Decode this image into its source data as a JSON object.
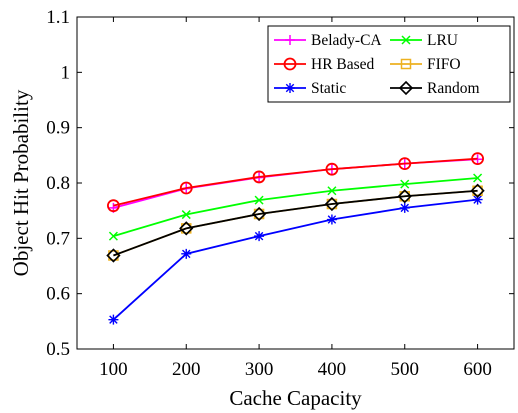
{
  "chart_data": {
    "type": "line",
    "xlabel": "Cache Capacity",
    "ylabel": "Object Hit Probability",
    "x": [
      100,
      200,
      300,
      400,
      500,
      600
    ],
    "xlim": [
      50,
      650
    ],
    "ylim": [
      0.5,
      1.1
    ],
    "xticks": [
      "100",
      "200",
      "300",
      "400",
      "500",
      "600"
    ],
    "yticks": [
      "0.5",
      "0.6",
      "0.7",
      "0.8",
      "0.9",
      "1",
      "1.1"
    ],
    "legend_position": "top-right",
    "grid": false,
    "series": [
      {
        "name": "Belady-CA",
        "color": "#ff00ff",
        "marker": "plus",
        "values": [
          0.755,
          0.79,
          0.81,
          0.825,
          0.835,
          0.843
        ]
      },
      {
        "name": "HR Based",
        "color": "#ff0000",
        "marker": "circle",
        "values": [
          0.759,
          0.791,
          0.811,
          0.825,
          0.835,
          0.844
        ]
      },
      {
        "name": "Static",
        "color": "#0000ff",
        "marker": "asterisk",
        "values": [
          0.553,
          0.672,
          0.704,
          0.734,
          0.755,
          0.77
        ]
      },
      {
        "name": "LRU",
        "color": "#00ff00",
        "marker": "x",
        "values": [
          0.704,
          0.743,
          0.769,
          0.786,
          0.798,
          0.809
        ]
      },
      {
        "name": "FIFO",
        "color": "#edb120",
        "marker": "square",
        "values": [
          0.669,
          0.718,
          0.744,
          0.762,
          0.776,
          0.786
        ]
      },
      {
        "name": "Random",
        "color": "#000000",
        "marker": "diamond",
        "values": [
          0.669,
          0.718,
          0.744,
          0.762,
          0.776,
          0.786
        ]
      }
    ],
    "legend_order": [
      "Belady-CA",
      "LRU",
      "HR Based",
      "FIFO",
      "Static",
      "Random"
    ]
  }
}
